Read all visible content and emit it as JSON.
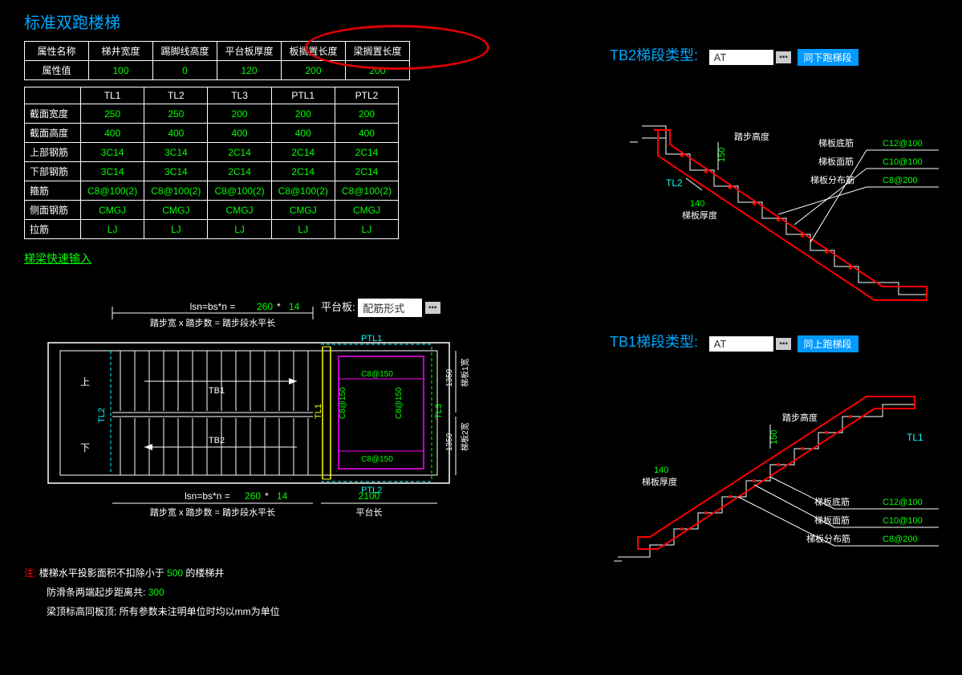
{
  "title": "标准双跑楼梯",
  "attr_table": {
    "header": [
      "属性名称",
      "梯井宽度",
      "踢脚线高度",
      "平台板厚度",
      "板搁置长度",
      "梁搁置长度"
    ],
    "row_label": "属性值",
    "values": [
      "100",
      "0",
      "120",
      "200",
      "200"
    ]
  },
  "beam_table": {
    "columns": [
      "TL1",
      "TL2",
      "TL3",
      "PTL1",
      "PTL2"
    ],
    "rows": [
      {
        "label": "截面宽度",
        "vals": [
          "250",
          "250",
          "200",
          "200",
          "200"
        ]
      },
      {
        "label": "截面高度",
        "vals": [
          "400",
          "400",
          "400",
          "400",
          "400"
        ]
      },
      {
        "label": "上部钢筋",
        "vals": [
          "3C14",
          "3C14",
          "2C14",
          "2C14",
          "2C14"
        ]
      },
      {
        "label": "下部钢筋",
        "vals": [
          "3C14",
          "3C14",
          "2C14",
          "2C14",
          "2C14"
        ]
      },
      {
        "label": "箍筋",
        "vals": [
          "C8@100(2)",
          "C8@100(2)",
          "C8@100(2)",
          "C8@100(2)",
          "C8@100(2)"
        ]
      },
      {
        "label": "侧面钢筋",
        "vals": [
          "CMGJ",
          "CMGJ",
          "CMGJ",
          "CMGJ",
          "CMGJ"
        ]
      },
      {
        "label": "拉筋",
        "vals": [
          "LJ",
          "LJ",
          "LJ",
          "LJ",
          "LJ"
        ]
      }
    ]
  },
  "quick_input_link": "梯梁快速输入",
  "plan": {
    "formula_top": "lsn=bs*n = 260 * 14",
    "formula_sub": "踏步宽 x 踏步数 = 踏步段水平长",
    "formula_bottom": "lsn=bs*n = 260 * 14",
    "formula_sub2": "踏步宽 x 踏步数 = 踏步段水平长",
    "platform_label": "平台板:",
    "platform_dropdown": "配筋形式",
    "up_label": "上",
    "down_label": "下",
    "tb1": "TB1",
    "tb2": "TB2",
    "tl1": "TL1",
    "tl2": "TL2",
    "tl3": "TL3",
    "ptl1": "PTL1",
    "ptl2": "PTL2",
    "rebar": "C8@150",
    "platform_len": "2100",
    "platform_len_label": "平台长",
    "side1": "1350",
    "side1_label": "梯板1宽",
    "side2": "1350",
    "side2_label": "梯板2宽"
  },
  "tb2_section": {
    "title": "TB2梯段类型:",
    "dropdown": "AT",
    "button": "同下跑梯段",
    "step_height": "踏步高度",
    "step_height_val": "150",
    "thickness": "140",
    "thickness_label": "梯板厚度",
    "tl1": "TL1",
    "tl2": "TL2",
    "bottom_rebar": "梯板底筋",
    "bottom_rebar_val": "C12@100",
    "top_rebar": "梯板面筋",
    "top_rebar_val": "C10@100",
    "dist_rebar": "梯板分布筋",
    "dist_rebar_val": "C8@200"
  },
  "tb1_section": {
    "title": "TB1梯段类型:",
    "dropdown": "AT",
    "button": "同上跑梯段",
    "step_height": "踏步高度",
    "step_height_val": "150",
    "thickness": "140",
    "thickness_label": "梯板厚度",
    "tl1": "TL1",
    "bottom_rebar": "梯板底筋",
    "bottom_rebar_val": "C12@100",
    "top_rebar": "梯板面筋",
    "top_rebar_val": "C10@100",
    "dist_rebar": "梯板分布筋",
    "dist_rebar_val": "C8@200"
  },
  "notes": {
    "prefix": "注:",
    "line1a": "楼梯水平投影面积不扣除小于",
    "line1b": "500",
    "line1c": "的楼梯井",
    "line2a": "防滑条两端起步距离共:",
    "line2b": "300",
    "line3": "梁顶标高同板顶; 所有参数未注明单位时均以mm为单位"
  },
  "colors": {
    "bg": "#000000",
    "title": "#00a8ff",
    "green": "#00ff00",
    "white": "#ffffff",
    "red": "#ff0000",
    "cyan": "#00ffff",
    "magenta": "#ff00ff",
    "yellow": "#ffff00",
    "annotation_red": "#dd0000",
    "button_blue": "#0099ff"
  }
}
